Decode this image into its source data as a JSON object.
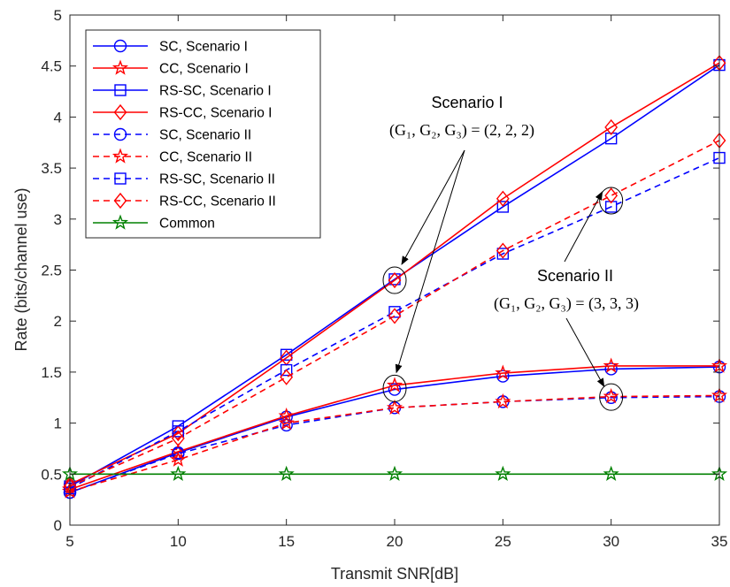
{
  "chart_data": {
    "type": "line",
    "xlabel": "Transmit SNR[dB]",
    "ylabel": "Rate (bits/channel use)",
    "xlim": [
      5,
      35
    ],
    "ylim": [
      0,
      5
    ],
    "xticks": [
      "5",
      "10",
      "15",
      "20",
      "25",
      "30",
      "35"
    ],
    "yticks": [
      "0",
      "0.5",
      "1",
      "1.5",
      "2",
      "2.5",
      "3",
      "3.5",
      "4",
      "4.5",
      "5"
    ],
    "grid": false,
    "legend_position": "top-left",
    "x": [
      5,
      10,
      15,
      20,
      25,
      30,
      35
    ],
    "series": [
      {
        "name": "SC, Scenario I",
        "color": "#0000ff",
        "marker": "circle",
        "dash": "solid",
        "values": [
          0.32,
          0.71,
          1.06,
          1.33,
          1.46,
          1.53,
          1.55
        ]
      },
      {
        "name": "CC, Scenario I",
        "color": "#ff0000",
        "marker": "star",
        "dash": "solid",
        "values": [
          0.35,
          0.72,
          1.07,
          1.37,
          1.49,
          1.56,
          1.56
        ]
      },
      {
        "name": "RS-SC, Scenario I",
        "color": "#0000ff",
        "marker": "square",
        "dash": "solid",
        "values": [
          0.38,
          0.97,
          1.67,
          2.41,
          3.12,
          3.79,
          4.51
        ]
      },
      {
        "name": "RS-CC, Scenario I",
        "color": "#ff0000",
        "marker": "diamond",
        "dash": "solid",
        "values": [
          0.4,
          0.9,
          1.64,
          2.4,
          3.2,
          3.9,
          4.53
        ]
      },
      {
        "name": "SC, Scenario II",
        "color": "#0000ff",
        "marker": "circle",
        "dash": "dashed",
        "values": [
          0.32,
          0.7,
          0.98,
          1.15,
          1.21,
          1.25,
          1.26
        ]
      },
      {
        "name": "CC, Scenario II",
        "color": "#ff0000",
        "marker": "star",
        "dash": "dashed",
        "values": [
          0.33,
          0.64,
          1.0,
          1.15,
          1.21,
          1.26,
          1.27
        ]
      },
      {
        "name": "RS-SC, Scenario II",
        "color": "#0000ff",
        "marker": "square",
        "dash": "dashed",
        "values": [
          0.36,
          0.92,
          1.52,
          2.09,
          2.66,
          3.12,
          3.6
        ]
      },
      {
        "name": "RS-CC, Scenario II",
        "color": "#ff0000",
        "marker": "diamond",
        "dash": "dashed",
        "values": [
          0.38,
          0.85,
          1.45,
          2.05,
          2.69,
          3.23,
          3.77
        ]
      },
      {
        "name": "Common",
        "color": "#008000",
        "marker": "star",
        "dash": "solid",
        "values": [
          0.5,
          0.5,
          0.5,
          0.5,
          0.5,
          0.5,
          0.5
        ]
      }
    ],
    "annotations": [
      {
        "title": "Scenario I",
        "math": "(G₁, G₂, G₃) = (2, 2, 2)"
      },
      {
        "title": "Scenario II",
        "math": "(G₁, G₂, G₃) = (3, 3, 3)"
      }
    ]
  }
}
